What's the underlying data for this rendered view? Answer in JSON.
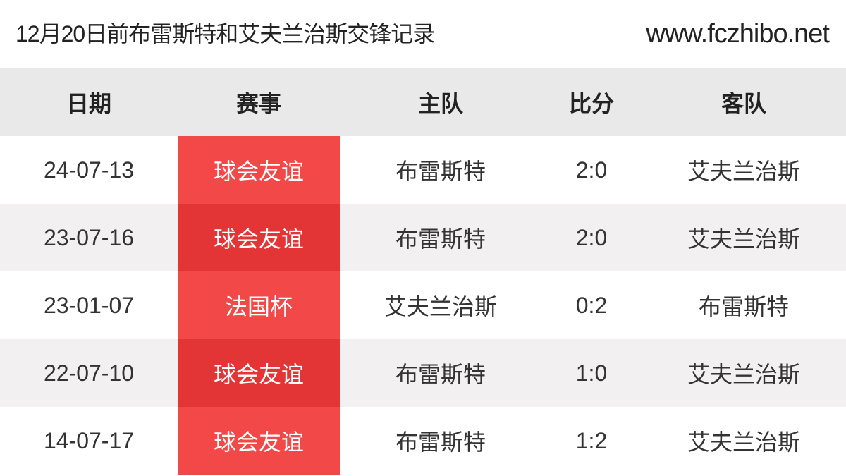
{
  "header": {
    "title": "12月20日前布雷斯特和艾夫兰治斯交锋记录",
    "site": "www.fczhibo.net"
  },
  "table": {
    "columns": [
      "日期",
      "赛事",
      "主队",
      "比分",
      "客队"
    ],
    "rows": [
      [
        "24-07-13",
        "球会友谊",
        "布雷斯特",
        "2:0",
        "艾夫兰治斯"
      ],
      [
        "23-07-16",
        "球会友谊",
        "布雷斯特",
        "2:0",
        "艾夫兰治斯"
      ],
      [
        "23-01-07",
        "法国杯",
        "艾夫兰治斯",
        "0:2",
        "布雷斯特"
      ],
      [
        "22-07-10",
        "球会友谊",
        "布雷斯特",
        "1:0",
        "艾夫兰治斯"
      ],
      [
        "14-07-17",
        "球会友谊",
        "布雷斯特",
        "1:2",
        "艾夫兰治斯"
      ]
    ]
  }
}
